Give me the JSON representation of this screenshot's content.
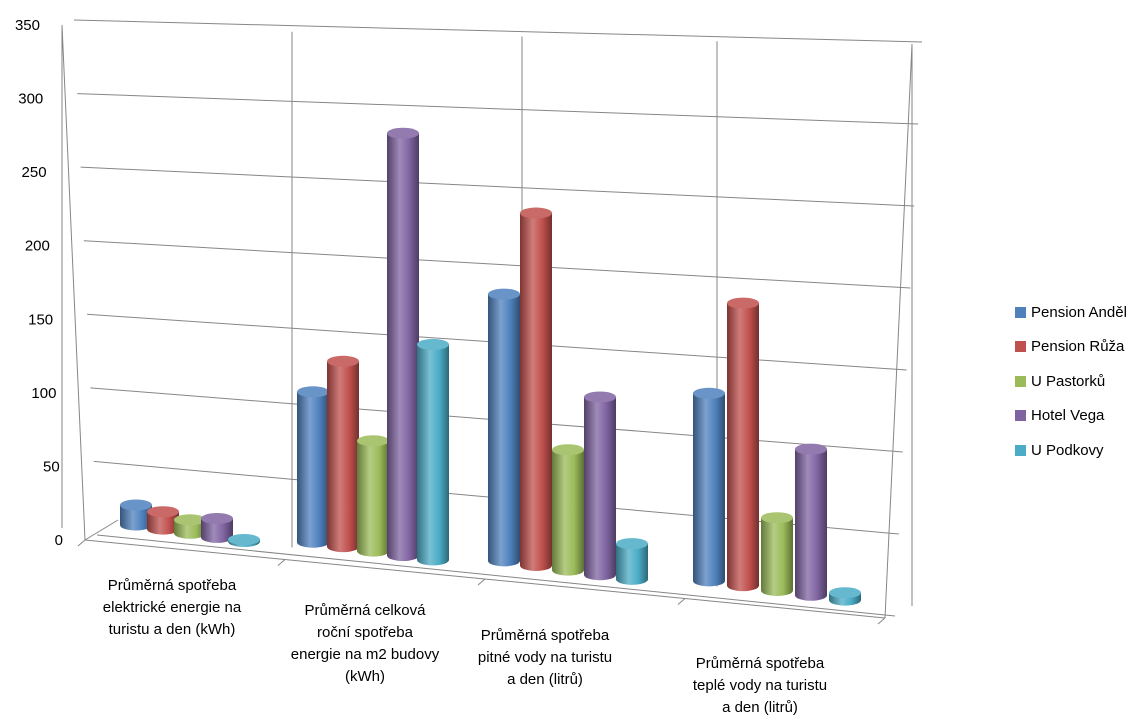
{
  "chart_data": {
    "type": "bar",
    "style": "3d-cylinder",
    "categories": [
      "Průměrná spotřeba elektrické energie na turistu a den (kWh)",
      "Průměrná celková roční spotřeba energie na m2 budovy (kWh)",
      "Průměrná spotřeba pitné vody na turistu a den (litrů)",
      "Průměrná spotřeba teplé vody na turistu a den (litrů)"
    ],
    "category_lines": [
      [
        "Průměrná spotřeba",
        "elektrické energie na",
        "turistu a den (kWh)"
      ],
      [
        "Průměrná celková",
        "roční spotřeba",
        "energie na m2 budovy",
        "(kWh)"
      ],
      [
        "Průměrná spotřeba",
        "pitné vody na turistu",
        "a den (litrů)"
      ],
      [
        "Průměrná spotřeba",
        "teplé vody na turistu",
        "a den (litrů)"
      ]
    ],
    "series": [
      {
        "name": "Pension Anděl",
        "color": "#4F81BD",
        "values": [
          15,
          110,
          190,
          130
        ]
      },
      {
        "name": "Pension Růža",
        "color": "#C0504D",
        "values": [
          13,
          135,
          250,
          195
        ]
      },
      {
        "name": "U Pastorků",
        "color": "#9BBB59",
        "values": [
          10,
          80,
          85,
          50
        ]
      },
      {
        "name": "Hotel Vega",
        "color": "#8064A2",
        "values": [
          14,
          305,
          125,
          100
        ]
      },
      {
        "name": "U Podkovy",
        "color": "#4BACC6",
        "values": [
          0,
          155,
          25,
          5
        ]
      }
    ],
    "yticks": [
      0,
      50,
      100,
      150,
      200,
      250,
      300,
      350
    ],
    "ylim": [
      0,
      350
    ],
    "grid": true,
    "legend_position": "right"
  }
}
